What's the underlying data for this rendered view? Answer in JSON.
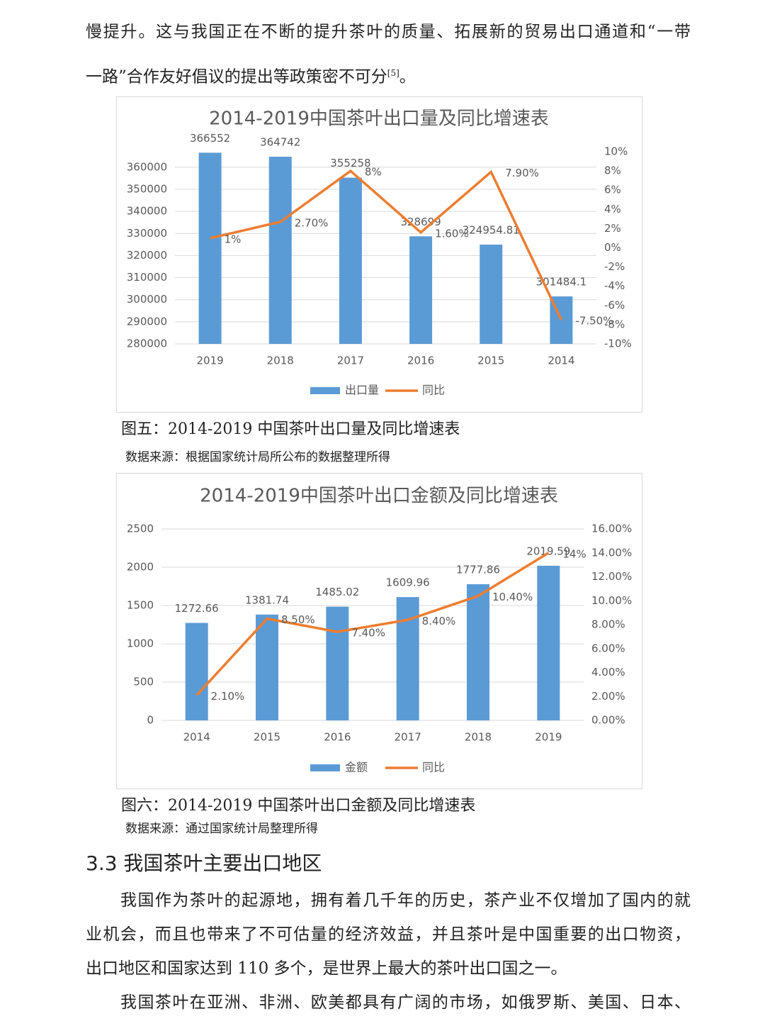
{
  "intro": {
    "lines": [
      "慢提升。这与我国正在不断的提升茶叶的质量、拓展新的贸易出口通道和“一带",
      "一路”合作友好倡议的提出等政策密不可分"
    ],
    "sup": "[5]",
    "end": "。"
  },
  "chart_data": [
    {
      "type": "bar",
      "title": "2014-2019中国茶叶出口量及同比增速表",
      "categories": [
        "2019",
        "2018",
        "2017",
        "2016",
        "2015",
        "2014"
      ],
      "series": [
        {
          "name": "出口量",
          "color": "#5b9bd5",
          "values": [
            366552,
            364742,
            355258,
            328699,
            324954.81,
            301484.1
          ]
        },
        {
          "name": "同比",
          "color": "#ed7d31",
          "type": "line",
          "axis": "y2",
          "values": [
            1,
            2.7,
            8,
            1.6,
            7.9,
            -7.5
          ],
          "value_labels": [
            "1%",
            "2.70%",
            "8%",
            "1.60%",
            "7.90%",
            "-7.50%"
          ]
        }
      ],
      "ylim": [
        280000,
        367000
      ],
      "yticks": [
        280000,
        290000,
        300000,
        310000,
        320000,
        330000,
        340000,
        350000,
        360000
      ],
      "y2lim": [
        -10,
        10
      ],
      "y2ticks": [
        {
          "value": -10,
          "label": "-10%"
        },
        {
          "value": -8,
          "label": "-8%"
        },
        {
          "value": -6,
          "label": "-6%"
        },
        {
          "value": -4,
          "label": "-4%"
        },
        {
          "value": -2,
          "label": "-2%"
        },
        {
          "value": 0,
          "label": "0%"
        },
        {
          "value": 2,
          "label": "2%"
        },
        {
          "value": 4,
          "label": "4%"
        },
        {
          "value": 6,
          "label": "6%"
        },
        {
          "value": 8,
          "label": "8%"
        },
        {
          "value": 10,
          "label": "10%"
        }
      ],
      "grid": true,
      "legend": "bottom",
      "caption": "图五：2014-2019 中国茶叶出口量及同比增速表",
      "source": "数据来源：根据国家统计局所公布的数据整理所得"
    },
    {
      "type": "bar",
      "title": "2014-2019中国茶叶出口金额及同比增速表",
      "categories": [
        "2014",
        "2015",
        "2016",
        "2017",
        "2018",
        "2019"
      ],
      "series": [
        {
          "name": "金额",
          "color": "#5b9bd5",
          "values": [
            1272.66,
            1381.74,
            1485.02,
            1609.96,
            1777.86,
            2019.59
          ]
        },
        {
          "name": "同比",
          "color": "#ed7d31",
          "type": "line",
          "axis": "y2",
          "values": [
            2.1,
            8.5,
            7.4,
            8.4,
            10.4,
            14
          ],
          "value_labels": [
            "2.10%",
            "8.50%",
            "7.40%",
            "8.40%",
            "10.40%",
            "14%"
          ]
        }
      ],
      "ylim": [
        0,
        2500
      ],
      "yticks": [
        0,
        500,
        1000,
        1500,
        2000,
        2500
      ],
      "y2lim": [
        0,
        16
      ],
      "y2ticks": [
        {
          "value": 0,
          "label": "0.00%"
        },
        {
          "value": 2,
          "label": "2.00%"
        },
        {
          "value": 4,
          "label": "4.00%"
        },
        {
          "value": 6,
          "label": "6.00%"
        },
        {
          "value": 8,
          "label": "8.00%"
        },
        {
          "value": 10,
          "label": "10.00%"
        },
        {
          "value": 12,
          "label": "12.00%"
        },
        {
          "value": 14,
          "label": "14.00%"
        },
        {
          "value": 16,
          "label": "16.00%"
        }
      ],
      "grid": true,
      "legend": "bottom",
      "caption": "图六：2014-2019 中国茶叶出口金额及同比增速表",
      "source": "数据来源：通过国家统计局整理所得"
    }
  ],
  "section": {
    "heading": "3.3  我国茶叶主要出口地区",
    "lines": [
      "我国作为茶叶的起源地，拥有着几千年的历史，茶产业不仅增加了国内的就",
      "业机会，而且也带来了不可估量的经济效益，并且茶叶是中国重要的出口物资，",
      "出口地区和国家达到 110 多个，是世界上最大的茶叶出口国之一。",
      "我国茶叶在亚洲、非洲、欧美都具有广阔的市场，如俄罗斯、美国、日本、"
    ]
  }
}
